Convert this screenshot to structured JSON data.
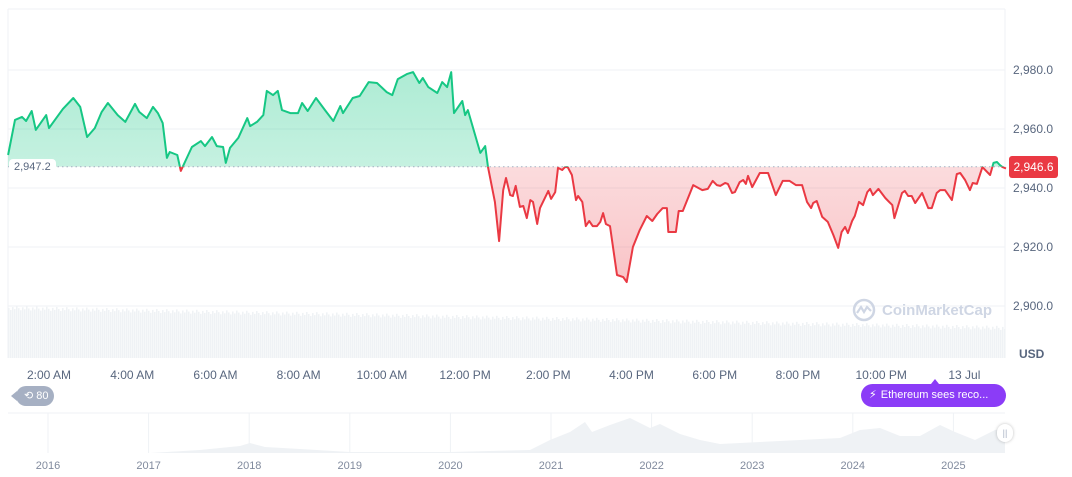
{
  "chart_data": {
    "type": "area",
    "currency": "USD",
    "ylim": [
      2895,
      2998
    ],
    "y_ticks": [
      "2,900.0",
      "2,920.0",
      "2,940.0",
      "2,960.0",
      "2,980.0"
    ],
    "y_tick_values": [
      2900,
      2920,
      2940,
      2960,
      2980
    ],
    "x_ticks": [
      "2:00 AM",
      "4:00 AM",
      "6:00 AM",
      "8:00 AM",
      "10:00 AM",
      "12:00 PM",
      "2:00 PM",
      "4:00 PM",
      "6:00 PM",
      "8:00 PM",
      "10:00 PM",
      "13 Jul"
    ],
    "baseline": 2947.2,
    "baseline_label": "2,947.2",
    "current_price": 2946.6,
    "current_price_label": "2,946.6",
    "up_color": "#16c784",
    "down_color": "#ea3943",
    "grid": true,
    "points": [
      [
        "01:01",
        2951.2
      ],
      [
        "01:11",
        2963.1
      ],
      [
        "01:21",
        2964.1
      ],
      [
        "01:27",
        2962.7
      ],
      [
        "01:35",
        2966.1
      ],
      [
        "01:41",
        2959.7
      ],
      [
        "01:56",
        2964.7
      ],
      [
        "02:00",
        2960.3
      ],
      [
        "02:20",
        2966.8
      ],
      [
        "02:35",
        2970.5
      ],
      [
        "02:45",
        2967.5
      ],
      [
        "02:55",
        2957.3
      ],
      [
        "03:06",
        2960.3
      ],
      [
        "03:16",
        2965.8
      ],
      [
        "03:25",
        2968.8
      ],
      [
        "03:39",
        2964.7
      ],
      [
        "03:50",
        2962.4
      ],
      [
        "04:04",
        2968.5
      ],
      [
        "04:10",
        2965.8
      ],
      [
        "04:21",
        2963.7
      ],
      [
        "04:30",
        2967.5
      ],
      [
        "04:37",
        2965.4
      ],
      [
        "04:44",
        2962.0
      ],
      [
        "04:50",
        2950.2
      ],
      [
        "04:54",
        2952.2
      ],
      [
        "05:05",
        2951.2
      ],
      [
        "05:10",
        2945.8
      ],
      [
        "05:26",
        2953.9
      ],
      [
        "05:39",
        2955.9
      ],
      [
        "05:45",
        2954.2
      ],
      [
        "05:55",
        2957.3
      ],
      [
        "06:02",
        2954.2
      ],
      [
        "06:11",
        2953.9
      ],
      [
        "06:15",
        2948.5
      ],
      [
        "06:21",
        2953.6
      ],
      [
        "06:33",
        2957.0
      ],
      [
        "06:46",
        2963.7
      ],
      [
        "06:50",
        2961.0
      ],
      [
        "07:00",
        2962.4
      ],
      [
        "07:09",
        2964.7
      ],
      [
        "07:14",
        2972.9
      ],
      [
        "07:23",
        2971.5
      ],
      [
        "07:30",
        2972.9
      ],
      [
        "07:36",
        2966.4
      ],
      [
        "07:48",
        2965.4
      ],
      [
        "07:59",
        2965.4
      ],
      [
        "08:05",
        2968.8
      ],
      [
        "08:13",
        2966.1
      ],
      [
        "08:25",
        2970.5
      ],
      [
        "08:38",
        2966.4
      ],
      [
        "08:50",
        2962.7
      ],
      [
        "09:00",
        2967.8
      ],
      [
        "09:04",
        2965.4
      ],
      [
        "09:18",
        2970.5
      ],
      [
        "09:28",
        2971.2
      ],
      [
        "09:41",
        2975.9
      ],
      [
        "09:53",
        2975.6
      ],
      [
        "10:07",
        2972.5
      ],
      [
        "10:15",
        2971.5
      ],
      [
        "10:23",
        2976.9
      ],
      [
        "10:36",
        2978.6
      ],
      [
        "10:45",
        2979.3
      ],
      [
        "10:54",
        2975.6
      ],
      [
        "10:59",
        2977.3
      ],
      [
        "11:07",
        2974.2
      ],
      [
        "11:20",
        2972.2
      ],
      [
        "11:27",
        2975.9
      ],
      [
        "11:34",
        2974.2
      ],
      [
        "11:40",
        2979.3
      ],
      [
        "11:44",
        2965.4
      ],
      [
        "11:56",
        2969.5
      ],
      [
        "12:00",
        2964.7
      ],
      [
        "12:04",
        2966.4
      ],
      [
        "12:22",
        2951.9
      ],
      [
        "12:29",
        2954.2
      ],
      [
        "12:33",
        2947.1
      ],
      [
        "12:43",
        2935.3
      ],
      [
        "12:49",
        2922.0
      ],
      [
        "12:55",
        2939.3
      ],
      [
        "12:59",
        2943.4
      ],
      [
        "13:05",
        2937.6
      ],
      [
        "13:09",
        2937.3
      ],
      [
        "13:13",
        2940.7
      ],
      [
        "13:19",
        2933.6
      ],
      [
        "13:24",
        2933.9
      ],
      [
        "13:29",
        2929.8
      ],
      [
        "13:34",
        2935.9
      ],
      [
        "13:38",
        2935.3
      ],
      [
        "13:44",
        2927.8
      ],
      [
        "13:48",
        2933.2
      ],
      [
        "14:00",
        2939.0
      ],
      [
        "14:04",
        2936.3
      ],
      [
        "14:10",
        2938.6
      ],
      [
        "14:14",
        2946.8
      ],
      [
        "14:20",
        2946.1
      ],
      [
        "14:24",
        2947.1
      ],
      [
        "14:28",
        2947.1
      ],
      [
        "14:34",
        2944.4
      ],
      [
        "14:40",
        2935.9
      ],
      [
        "14:43",
        2937.3
      ],
      [
        "14:49",
        2935.3
      ],
      [
        "14:54",
        2927.1
      ],
      [
        "14:59",
        2928.8
      ],
      [
        "15:04",
        2927.1
      ],
      [
        "15:10",
        2927.1
      ],
      [
        "15:15",
        2928.5
      ],
      [
        "15:19",
        2931.5
      ],
      [
        "15:23",
        2927.8
      ],
      [
        "15:29",
        2927.1
      ],
      [
        "15:39",
        2910.5
      ],
      [
        "15:48",
        2909.8
      ],
      [
        "15:53",
        2908.1
      ],
      [
        "16:02",
        2920.0
      ],
      [
        "16:12",
        2925.8
      ],
      [
        "16:22",
        2930.5
      ],
      [
        "16:30",
        2928.8
      ],
      [
        "16:37",
        2931.2
      ],
      [
        "16:45",
        2933.2
      ],
      [
        "16:51",
        2933.2
      ],
      [
        "16:53",
        2925.1
      ],
      [
        "17:04",
        2925.1
      ],
      [
        "17:08",
        2932.2
      ],
      [
        "17:14",
        2932.2
      ],
      [
        "17:29",
        2941.0
      ],
      [
        "17:42",
        2939.3
      ],
      [
        "17:50",
        2939.7
      ],
      [
        "17:57",
        2942.4
      ],
      [
        "18:03",
        2941.0
      ],
      [
        "18:08",
        2940.7
      ],
      [
        "18:15",
        2941.7
      ],
      [
        "18:19",
        2941.4
      ],
      [
        "18:25",
        2938.3
      ],
      [
        "18:29",
        2938.6
      ],
      [
        "18:36",
        2942.0
      ],
      [
        "18:41",
        2942.7
      ],
      [
        "18:45",
        2941.4
      ],
      [
        "18:48",
        2944.1
      ],
      [
        "18:54",
        2940.3
      ],
      [
        "19:05",
        2945.1
      ],
      [
        "19:17",
        2945.1
      ],
      [
        "19:28",
        2937.6
      ],
      [
        "19:38",
        2942.4
      ],
      [
        "19:48",
        2942.4
      ],
      [
        "19:57",
        2941.0
      ],
      [
        "20:06",
        2941.0
      ],
      [
        "20:13",
        2935.3
      ],
      [
        "20:19",
        2933.2
      ],
      [
        "20:22",
        2934.9
      ],
      [
        "20:27",
        2935.6
      ],
      [
        "20:35",
        2930.2
      ],
      [
        "20:43",
        2928.5
      ],
      [
        "20:51",
        2924.1
      ],
      [
        "20:58",
        2919.7
      ],
      [
        "21:03",
        2925.1
      ],
      [
        "21:08",
        2926.8
      ],
      [
        "21:12",
        2924.7
      ],
      [
        "21:18",
        2928.8
      ],
      [
        "21:22",
        2930.5
      ],
      [
        "21:28",
        2935.3
      ],
      [
        "21:34",
        2934.2
      ],
      [
        "21:40",
        2938.6
      ],
      [
        "21:44",
        2939.7
      ],
      [
        "21:48",
        2937.6
      ],
      [
        "21:56",
        2939.7
      ],
      [
        "22:06",
        2936.6
      ],
      [
        "22:16",
        2934.2
      ],
      [
        "22:19",
        2929.8
      ],
      [
        "22:30",
        2938.3
      ],
      [
        "22:34",
        2939.0
      ],
      [
        "22:39",
        2937.3
      ],
      [
        "22:44",
        2937.3
      ],
      [
        "22:49",
        2934.9
      ],
      [
        "22:59",
        2938.3
      ],
      [
        "23:08",
        2933.2
      ],
      [
        "23:13",
        2933.2
      ],
      [
        "23:20",
        2938.3
      ],
      [
        "23:25",
        2939.3
      ],
      [
        "23:32",
        2939.3
      ],
      [
        "23:42",
        2935.9
      ],
      [
        "23:49",
        2944.7
      ],
      [
        "23:54",
        2945.1
      ],
      [
        "00:01",
        2942.7
      ],
      [
        "00:08",
        2939.3
      ],
      [
        "00:12",
        2941.7
      ],
      [
        "00:18",
        2941.4
      ],
      [
        "00:26",
        2947.1
      ],
      [
        "00:37",
        2944.4
      ],
      [
        "00:42",
        2948.5
      ],
      [
        "00:47",
        2948.8
      ],
      [
        "00:51",
        2947.8
      ],
      [
        "00:55",
        2947.1
      ],
      [
        "01:00",
        2946.6
      ]
    ],
    "navigator": {
      "x_ticks": [
        "2016",
        "2017",
        "2018",
        "2019",
        "2020",
        "2021",
        "2022",
        "2023",
        "2024",
        "2025"
      ]
    }
  },
  "watermark": "CoinMarketCap",
  "history_badge": {
    "icon": "history-icon",
    "count": "80"
  },
  "news_pill": {
    "icon": "lightning-icon",
    "text": "Ethereum sees reco..."
  },
  "navigator_handle": "||"
}
